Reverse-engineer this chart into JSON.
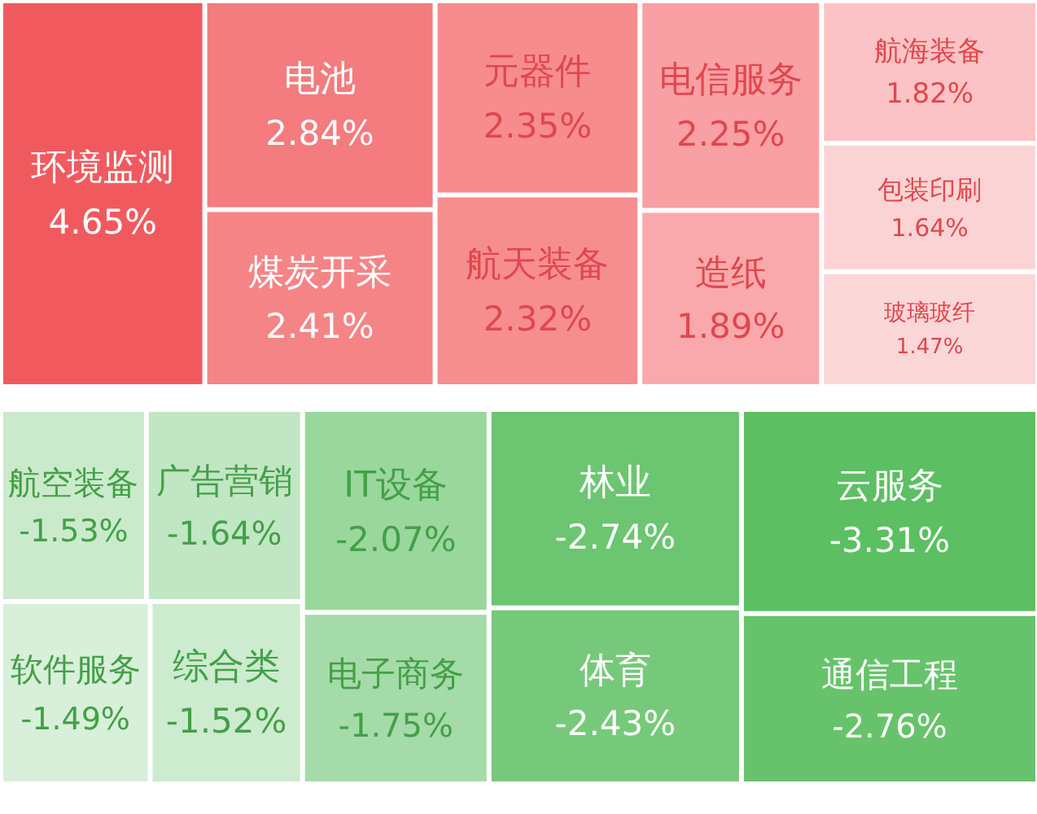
{
  "chart_data": [
    {
      "type": "other",
      "categories": [
        "环境监测",
        "电池",
        "煤炭开采",
        "元器件",
        "航天装备",
        "电信服务",
        "造纸",
        "航海装备",
        "包装印刷",
        "玻璃玻纤"
      ],
      "values": [
        4.65,
        2.84,
        2.41,
        2.35,
        2.32,
        2.25,
        1.89,
        1.82,
        1.64,
        1.47
      ],
      "value_labels": [
        "4.65%",
        "2.84%",
        "2.41%",
        "2.35%",
        "2.32%",
        "2.25%",
        "1.89%",
        "1.82%",
        "1.64%",
        "1.47%"
      ],
      "colors": [
        "#f05a5e",
        "#f47b7e",
        "#f58486",
        "#f68c8e",
        "#f68e90",
        "#f8a0a3",
        "#f9a9ab",
        "#fbc3c5",
        "#fcd3d4",
        "#fcd7d8"
      ]
    },
    {
      "type": "other",
      "categories": [
        "云服务",
        "通信工程",
        "林业",
        "体育",
        "IT设备",
        "电子商务",
        "广告营销",
        "航空装备",
        "综合类",
        "软件服务"
      ],
      "values": [
        -3.31,
        -2.76,
        -2.74,
        -2.43,
        -2.07,
        -1.75,
        -1.64,
        -1.53,
        -1.52,
        -1.49
      ],
      "value_labels": [
        "-3.31%",
        "-2.76%",
        "-2.74%",
        "-2.43%",
        "-2.07%",
        "-1.75%",
        "-1.64%",
        "-1.53%",
        "-1.52%",
        "-1.49%"
      ],
      "colors": [
        "#5cbf62",
        "#66c36b",
        "#6cc571",
        "#76c97a",
        "#9ad79d",
        "#a5dba8",
        "#c1e6c3",
        "#cbeacc",
        "#cdebce",
        "#d8efd9"
      ]
    }
  ]
}
